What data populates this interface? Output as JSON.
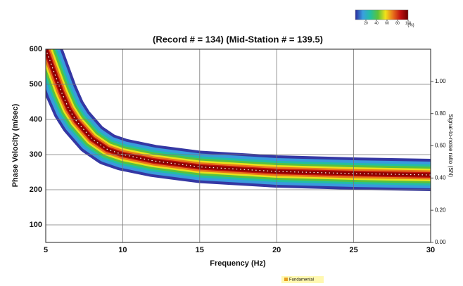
{
  "chart_data": {
    "type": "dispersion",
    "title": "(Record # = 134) (Mid-Station # = 139.5)",
    "x_label": "Frequency (Hz)",
    "y_label": "Phase Velocity (m/sec)",
    "y2_label": "Signal-to-noise ratio (SN)",
    "x": [
      5,
      5.5,
      6,
      6.5,
      7,
      8,
      9,
      10,
      12,
      15,
      20,
      25,
      30
    ],
    "series": [
      {
        "name": "Fundamental",
        "color": "#8b0000",
        "values": [
          600,
          540,
          480,
          430,
          395,
          345,
          315,
          300,
          282,
          265,
          252,
          246,
          242
        ]
      }
    ],
    "xlim": [
      5,
      30
    ],
    "xticks": [
      5,
      10,
      15,
      20,
      25,
      30
    ],
    "ylim": [
      50,
      600
    ],
    "yticks": [
      100,
      200,
      300,
      400,
      500,
      600
    ],
    "y2lim": [
      0,
      1.2
    ],
    "y2ticks": [
      {
        "value": 0,
        "label": "0.00"
      },
      {
        "value": 0.2,
        "label": "0.20"
      },
      {
        "value": 0.4,
        "label": "0.40"
      },
      {
        "value": 0.6,
        "label": "0.60"
      },
      {
        "value": 0.8,
        "label": "0.80"
      },
      {
        "value": 1,
        "label": "1.00"
      }
    ],
    "grid": true,
    "colormap": [
      "#2a2c9e",
      "#3aa0e0",
      "#22c0a0",
      "#5cc23a",
      "#f2e21a",
      "#e8701c",
      "#c01010",
      "#6a0000"
    ],
    "colorbar_lim": [
      0,
      100
    ],
    "colorbar_ticks": [
      20,
      40,
      60,
      80,
      100
    ],
    "colorbar_label": "(%)"
  }
}
